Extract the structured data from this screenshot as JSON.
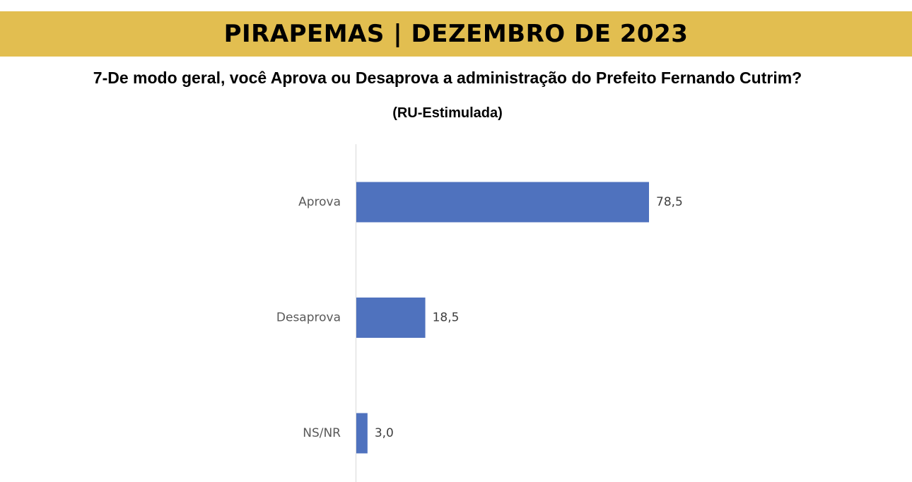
{
  "header": {
    "title": "PIRAPEMAS | DEZEMBRO DE 2023",
    "question": "7-De modo geral, você Aprova ou Desaprova a administração do Prefeito Fernando Cutrim?",
    "subtitle": "(RU-Estimulada)"
  },
  "colors": {
    "banner": "#E2BE50",
    "bar": "#4F72BE",
    "axis": "#D9D9D9"
  },
  "chart_data": {
    "type": "bar",
    "orientation": "horizontal",
    "categories": [
      "Aprova",
      "Desaprova",
      "NS/NR"
    ],
    "values": [
      78.5,
      18.5,
      3.0
    ],
    "value_labels": [
      "78,5",
      "18,5",
      "3,0"
    ],
    "title": "7-De modo geral, você Aprova ou Desaprova a administração do Prefeito Fernando Cutrim?",
    "xlabel": "",
    "ylabel": "",
    "xlim": [
      0,
      100
    ],
    "grid": false,
    "legend": "none"
  }
}
